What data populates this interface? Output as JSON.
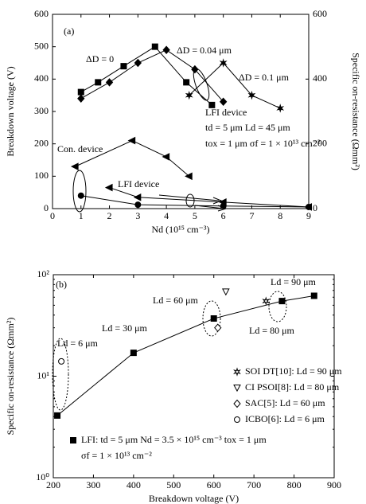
{
  "chart_data": [
    {
      "type": "line",
      "label": "(a)",
      "x_label": "Nd (10¹⁵ cm⁻³)",
      "y_label": "Breakdown voltage (V)",
      "y2_label": "Specific on-resistance (Ωmm²)",
      "xlim": [
        0,
        9
      ],
      "xticks": [
        0,
        1,
        2,
        3,
        4,
        5,
        6,
        7,
        8,
        9
      ],
      "ylim": [
        0,
        600
      ],
      "yticks": [
        0,
        100,
        200,
        300,
        400,
        500,
        600
      ],
      "y2lim": [
        0,
        600
      ],
      "y2ticks": [
        0,
        200,
        400,
        600
      ],
      "annotations": [
        "LFI device",
        "td = 5 μm  Ld = 45 μm",
        "tox = 1 μm  σf = 1 × 10¹³ cm⁻²"
      ],
      "series": [
        {
          "name": "ΔD = 0",
          "color": "#000000",
          "marker": "square",
          "filled": true,
          "line": true,
          "x": [
            1,
            1.6,
            2.5,
            3.6,
            4.7,
            5.6
          ],
          "values": [
            360,
            390,
            440,
            500,
            390,
            320
          ]
        },
        {
          "name": "ΔD = 0.04 μm",
          "color": "#000000",
          "marker": "diamond",
          "filled": true,
          "line": true,
          "x": [
            1,
            2,
            3,
            4,
            5,
            6
          ],
          "values": [
            340,
            390,
            450,
            490,
            430,
            330
          ]
        },
        {
          "name": "ΔD = 0.1 μm",
          "color": "#000000",
          "marker": "star",
          "filled": true,
          "line": true,
          "x": [
            4.8,
            6,
            7,
            8
          ],
          "values": [
            350,
            450,
            350,
            310
          ]
        },
        {
          "name": "Con. device",
          "color": "#000000",
          "marker": "triangle-left",
          "filled": true,
          "line": true,
          "axis": "y2",
          "x": [
            0.8,
            2.8,
            4,
            4.8
          ],
          "values": [
            130,
            210,
            160,
            100
          ]
        },
        {
          "name": "LFI device",
          "color": "#000000",
          "marker": "triangle-left",
          "filled": true,
          "line": true,
          "axis": "y2",
          "x": [
            2,
            3,
            6,
            9
          ],
          "values": [
            65,
            35,
            20,
            5
          ]
        },
        {
          "color": "#000000",
          "marker": "circle",
          "filled": true,
          "line": true,
          "axis": "y2",
          "x": [
            1,
            3,
            6,
            9
          ],
          "values": [
            40,
            12,
            8,
            5
          ]
        }
      ]
    },
    {
      "type": "line",
      "label": "(b)",
      "log_y": true,
      "x_label": "Breakdown voltage (V)",
      "y_label": "Specific on-resistance (Ωmm²)",
      "xlim": [
        200,
        900
      ],
      "xticks": [
        200,
        300,
        400,
        500,
        600,
        700,
        800,
        900
      ],
      "ylim": [
        1,
        100
      ],
      "yticks": [
        {
          "value": 1,
          "label": "10⁰"
        },
        {
          "value": 10,
          "label": "10¹"
        },
        {
          "value": 100,
          "label": "10²"
        }
      ],
      "annotations": [
        "Ld = 90 μm",
        "Ld = 60 μm",
        "Ld = 30 μm",
        "Ld = 6 μm",
        "Ld = 80 μm",
        "σf = 1 × 10¹³ cm⁻²"
      ],
      "series": [
        {
          "name": "SOI DT[10]: Ld = 90 μm",
          "color": "#000000",
          "marker": "star",
          "filled": false,
          "line": false,
          "x": [
            730
          ],
          "values": [
            55
          ]
        },
        {
          "name": "CI PSOI[8]: Ld = 80 μm",
          "color": "#000000",
          "marker": "triangle-down",
          "filled": false,
          "line": false,
          "x": [
            630
          ],
          "values": [
            68
          ]
        },
        {
          "name": "SAC[5]: Ld = 60 μm",
          "color": "#000000",
          "marker": "diamond",
          "filled": false,
          "line": false,
          "x": [
            610
          ],
          "values": [
            30
          ]
        },
        {
          "name": "ICBO[6]: Ld = 6 μm",
          "color": "#000000",
          "marker": "circle",
          "filled": false,
          "line": false,
          "x": [
            220
          ],
          "values": [
            14
          ]
        },
        {
          "name": "LFI: td = 5 μm Nd = 3.5 × 10¹⁵ cm⁻³ tox = 1 μm",
          "color": "#000000",
          "marker": "square",
          "filled": true,
          "line": true,
          "x": [
            210,
            400,
            600,
            770,
            850
          ],
          "values": [
            4.1,
            17,
            37,
            55,
            62
          ]
        }
      ]
    }
  ]
}
